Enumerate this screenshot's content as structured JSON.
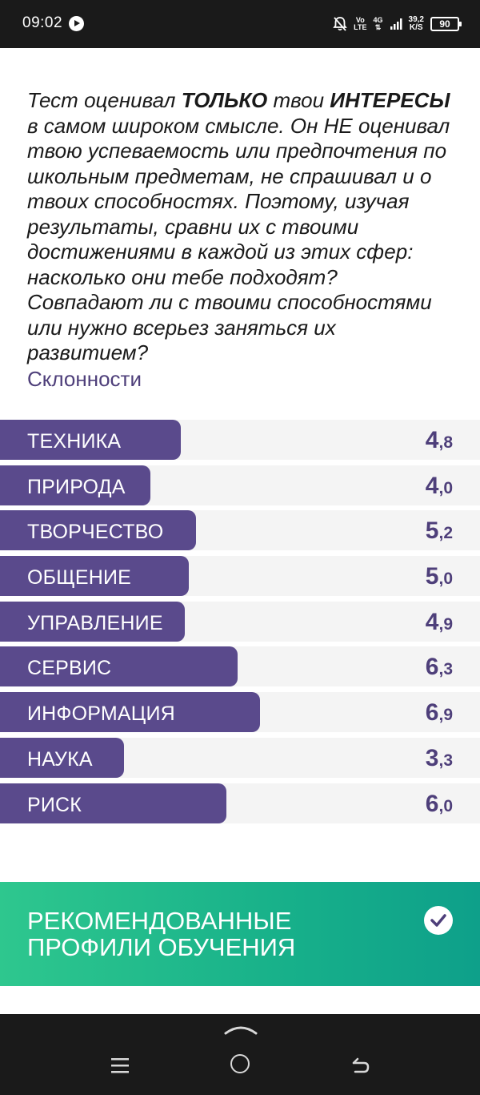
{
  "status_bar": {
    "time": "09:02",
    "net_top": "Vo",
    "net_bottom": "LTE",
    "gen": "4G",
    "speed_value": "39,2",
    "speed_unit": "K/S",
    "battery": "90"
  },
  "intro": {
    "t1": "Тест оценивал ",
    "b1": "ТОЛЬКО",
    "t2": " твои ",
    "b2": "ИНТЕРЕСЫ",
    "t3": " в самом широком смысле. Он НЕ оценивал твою успеваемость или предпочтения по школьным предметам, не спрашивал и о твоих способностях. Поэтому, изучая результаты, сравни их с твоими достижениями в каждой из этих сфер: насколько они тебе подходят? Совпадают ли с твоими способностями или нужно всерьез заняться их развитием?"
  },
  "section_title": "Склонности",
  "chart_data": {
    "type": "bar",
    "title": "Склонности",
    "categories": [
      "ТЕХНИКА",
      "ПРИРОДА",
      "ТВОРЧЕСТВО",
      "ОБЩЕНИЕ",
      "УПРАВЛЕНИЕ",
      "СЕРВИС",
      "ИНФОРМАЦИЯ",
      "НАУКА",
      "РИСК"
    ],
    "values": [
      4.8,
      4.0,
      5.2,
      5.0,
      4.9,
      6.3,
      6.9,
      3.3,
      6.0
    ],
    "value_labels": [
      {
        "int": "4",
        "dec": ",8"
      },
      {
        "int": "4",
        "dec": ",0"
      },
      {
        "int": "5",
        "dec": ",2"
      },
      {
        "int": "5",
        "dec": ",0"
      },
      {
        "int": "4",
        "dec": ",9"
      },
      {
        "int": "6",
        "dec": ",3"
      },
      {
        "int": "6",
        "dec": ",9"
      },
      {
        "int": "3",
        "dec": ",3"
      },
      {
        "int": "6",
        "dec": ",0"
      }
    ],
    "bar_color": "#5a4a8c",
    "value_color": "#4e3f7a",
    "track_color": "#f4f4f4"
  },
  "recommended": {
    "title": "РЕКОМЕНДОВАННЫЕ ПРОФИЛИ ОБУЧЕНИЯ",
    "icon": "check-icon"
  },
  "nav_bar": {
    "menu_icon": "menu-icon",
    "home_icon": "home-icon",
    "back_icon": "back-icon"
  }
}
